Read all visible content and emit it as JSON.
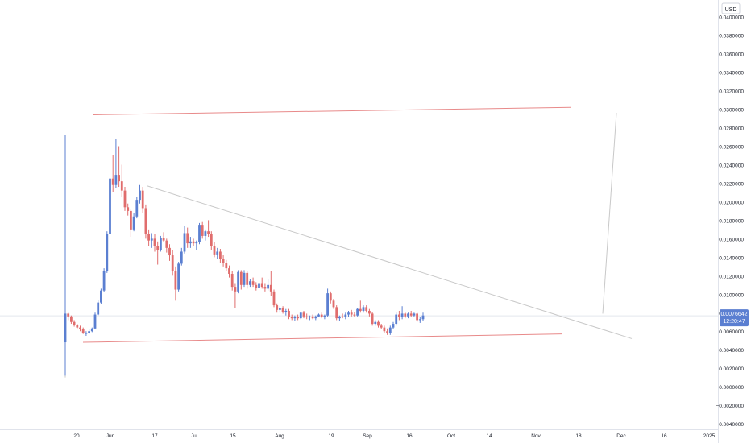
{
  "chart_data": {
    "type": "candlestick",
    "currency": "USD",
    "y_ticks": [
      "0.0400000",
      "0.0380000",
      "0.0360000",
      "0.0340000",
      "0.0320000",
      "0.0300000",
      "0.0280000",
      "0.0260000",
      "0.0240000",
      "0.0220000",
      "0.0200000",
      "0.0180000",
      "0.0160000",
      "0.0140000",
      "0.0120000",
      "0.0100000",
      "0.0080000",
      "0.0060000",
      "0.0040000",
      "0.0020000",
      "−0.0000000",
      "−0.0020000",
      "−0.0040000"
    ],
    "ylim": [
      -0.0046,
      0.0418
    ],
    "x_ticks": [
      "20",
      "Jun",
      "17",
      "Jul",
      "15",
      "Aug",
      "19",
      "Sep",
      "16",
      "Oct",
      "14",
      "Nov",
      "18",
      "Dec",
      "16",
      "2025"
    ],
    "x_tick_pos": [
      95,
      137,
      192,
      241,
      289,
      347,
      411,
      456,
      508,
      560,
      607,
      665,
      718,
      771,
      824,
      880
    ],
    "last_price": {
      "value": "0.0076642",
      "countdown": "12:20:47",
      "color": "#5b7fd1"
    },
    "colors": {
      "up": "#5b7fd1",
      "down": "#e06d6d",
      "resistance": "#e88a8a",
      "support": "#e88a8a",
      "trend": "#c8c8c8"
    },
    "candles_px_per_day": 3.7,
    "candles": [
      [
        0.0048,
        0.0272,
        0.0012,
        0.0079
      ],
      [
        0.0079,
        0.008,
        0.0072,
        0.0076
      ],
      [
        0.0076,
        0.0077,
        0.0068,
        0.007
      ],
      [
        0.007,
        0.0072,
        0.0065,
        0.0067
      ],
      [
        0.0067,
        0.0068,
        0.0063,
        0.0064
      ],
      [
        0.0064,
        0.0066,
        0.006,
        0.0062
      ],
      [
        0.0062,
        0.0064,
        0.0057,
        0.0058
      ],
      [
        0.0058,
        0.006,
        0.0055,
        0.0058
      ],
      [
        0.0058,
        0.0062,
        0.0057,
        0.006
      ],
      [
        0.006,
        0.0064,
        0.0059,
        0.0063
      ],
      [
        0.0063,
        0.008,
        0.0062,
        0.0078
      ],
      [
        0.0078,
        0.0094,
        0.0077,
        0.0091
      ],
      [
        0.0091,
        0.0106,
        0.0089,
        0.0104
      ],
      [
        0.0104,
        0.0128,
        0.0102,
        0.0125
      ],
      [
        0.0125,
        0.0168,
        0.0123,
        0.0165
      ],
      [
        0.0165,
        0.0295,
        0.0163,
        0.0225
      ],
      [
        0.0225,
        0.025,
        0.021,
        0.0218
      ],
      [
        0.0218,
        0.0268,
        0.0215,
        0.0229
      ],
      [
        0.0229,
        0.026,
        0.0216,
        0.0222
      ],
      [
        0.0222,
        0.024,
        0.0205,
        0.0212
      ],
      [
        0.0212,
        0.0216,
        0.019,
        0.0194
      ],
      [
        0.0194,
        0.0198,
        0.0185,
        0.019
      ],
      [
        0.019,
        0.0192,
        0.0162,
        0.017
      ],
      [
        0.017,
        0.0188,
        0.0168,
        0.0184
      ],
      [
        0.0184,
        0.0205,
        0.0182,
        0.0202
      ],
      [
        0.0202,
        0.0218,
        0.0198,
        0.0212
      ],
      [
        0.0212,
        0.0216,
        0.0188,
        0.0193
      ],
      [
        0.0193,
        0.0197,
        0.016,
        0.0165
      ],
      [
        0.0165,
        0.017,
        0.0152,
        0.0158
      ],
      [
        0.0158,
        0.0166,
        0.015,
        0.016
      ],
      [
        0.016,
        0.0165,
        0.0146,
        0.0152
      ],
      [
        0.0152,
        0.0157,
        0.0132,
        0.0148
      ],
      [
        0.0148,
        0.0163,
        0.0146,
        0.0161
      ],
      [
        0.0161,
        0.0167,
        0.0156,
        0.0158
      ],
      [
        0.0158,
        0.016,
        0.0145,
        0.015
      ],
      [
        0.015,
        0.0154,
        0.0136,
        0.0142
      ],
      [
        0.0142,
        0.0148,
        0.012,
        0.0125
      ],
      [
        0.0125,
        0.013,
        0.0093,
        0.0105
      ],
      [
        0.0105,
        0.0135,
        0.0103,
        0.0133
      ],
      [
        0.0133,
        0.015,
        0.0131,
        0.0146
      ],
      [
        0.0146,
        0.0174,
        0.0144,
        0.0166
      ],
      [
        0.0166,
        0.0172,
        0.015,
        0.0155
      ],
      [
        0.0155,
        0.0162,
        0.015,
        0.0157
      ],
      [
        0.0157,
        0.016,
        0.0152,
        0.0155
      ],
      [
        0.0155,
        0.0158,
        0.0148,
        0.0156
      ],
      [
        0.0156,
        0.0177,
        0.0154,
        0.0175
      ],
      [
        0.0175,
        0.0178,
        0.016,
        0.0163
      ],
      [
        0.0163,
        0.017,
        0.0158,
        0.0168
      ],
      [
        0.0168,
        0.018,
        0.0162,
        0.0165
      ],
      [
        0.0165,
        0.0168,
        0.0148,
        0.0152
      ],
      [
        0.0152,
        0.0156,
        0.014,
        0.0143
      ],
      [
        0.0143,
        0.015,
        0.0138,
        0.0146
      ],
      [
        0.0146,
        0.0149,
        0.0134,
        0.0138
      ],
      [
        0.0138,
        0.0142,
        0.013,
        0.0134
      ],
      [
        0.0134,
        0.0137,
        0.0125,
        0.0128
      ],
      [
        0.0128,
        0.0131,
        0.0118,
        0.0122
      ],
      [
        0.0122,
        0.0125,
        0.0104,
        0.0108
      ],
      [
        0.0108,
        0.0112,
        0.0085,
        0.0103
      ],
      [
        0.0103,
        0.0126,
        0.0101,
        0.0124
      ],
      [
        0.0124,
        0.0126,
        0.0105,
        0.011
      ],
      [
        0.011,
        0.0126,
        0.0108,
        0.0123
      ],
      [
        0.0123,
        0.0125,
        0.0106,
        0.011
      ],
      [
        0.011,
        0.0116,
        0.0108,
        0.0114
      ],
      [
        0.0114,
        0.0118,
        0.0108,
        0.011
      ],
      [
        0.011,
        0.0113,
        0.0104,
        0.0107
      ],
      [
        0.0107,
        0.0114,
        0.0105,
        0.0112
      ],
      [
        0.0112,
        0.0118,
        0.0106,
        0.0108
      ],
      [
        0.0108,
        0.0112,
        0.0103,
        0.0106
      ],
      [
        0.0106,
        0.0116,
        0.0104,
        0.011
      ],
      [
        0.011,
        0.0125,
        0.0098,
        0.0103
      ],
      [
        0.0103,
        0.0105,
        0.0086,
        0.0088
      ],
      [
        0.0088,
        0.009,
        0.008,
        0.0083
      ],
      [
        0.0083,
        0.0087,
        0.008,
        0.0085
      ],
      [
        0.0085,
        0.0087,
        0.0079,
        0.0081
      ],
      [
        0.0081,
        0.0084,
        0.0077,
        0.0082
      ],
      [
        0.0082,
        0.0084,
        0.0073,
        0.0075
      ],
      [
        0.0075,
        0.0078,
        0.0072,
        0.0074
      ],
      [
        0.0074,
        0.0077,
        0.0071,
        0.0075
      ],
      [
        0.0075,
        0.0078,
        0.0072,
        0.0074
      ],
      [
        0.0074,
        0.0081,
        0.0073,
        0.008
      ],
      [
        0.008,
        0.0082,
        0.0074,
        0.0076
      ],
      [
        0.0076,
        0.0079,
        0.0073,
        0.0075
      ],
      [
        0.0075,
        0.0077,
        0.0072,
        0.0076
      ],
      [
        0.0076,
        0.0078,
        0.0073,
        0.0074
      ],
      [
        0.0074,
        0.0077,
        0.0072,
        0.0076
      ],
      [
        0.0076,
        0.0079,
        0.0075,
        0.0078
      ],
      [
        0.0078,
        0.008,
        0.0074,
        0.0075
      ],
      [
        0.0075,
        0.0078,
        0.0073,
        0.0077
      ],
      [
        0.0077,
        0.0106,
        0.0075,
        0.0101
      ],
      [
        0.0101,
        0.0103,
        0.009,
        0.0093
      ],
      [
        0.0093,
        0.0095,
        0.0084,
        0.0086
      ],
      [
        0.0086,
        0.0088,
        0.0072,
        0.0074
      ],
      [
        0.0074,
        0.0077,
        0.0071,
        0.0076
      ],
      [
        0.0076,
        0.0079,
        0.0074,
        0.0075
      ],
      [
        0.0075,
        0.008,
        0.0073,
        0.0078
      ],
      [
        0.0078,
        0.0082,
        0.0075,
        0.008
      ],
      [
        0.008,
        0.0083,
        0.0076,
        0.0078
      ],
      [
        0.0078,
        0.0081,
        0.0075,
        0.0077
      ],
      [
        0.0077,
        0.0085,
        0.0076,
        0.0084
      ],
      [
        0.0084,
        0.0093,
        0.008,
        0.0082
      ],
      [
        0.0082,
        0.0088,
        0.008,
        0.0086
      ],
      [
        0.0086,
        0.0088,
        0.008,
        0.0082
      ],
      [
        0.0082,
        0.0084,
        0.0076,
        0.0079
      ],
      [
        0.0079,
        0.0081,
        0.0066,
        0.0068
      ],
      [
        0.0068,
        0.0072,
        0.0066,
        0.007
      ],
      [
        0.007,
        0.0072,
        0.0064,
        0.0066
      ],
      [
        0.0066,
        0.0068,
        0.0062,
        0.0064
      ],
      [
        0.0064,
        0.0066,
        0.0058,
        0.006
      ],
      [
        0.006,
        0.0063,
        0.0056,
        0.0058
      ],
      [
        0.0058,
        0.0066,
        0.0056,
        0.0064
      ],
      [
        0.0064,
        0.007,
        0.0062,
        0.0068
      ],
      [
        0.0068,
        0.008,
        0.0066,
        0.0078
      ],
      [
        0.0078,
        0.0082,
        0.0072,
        0.0075
      ],
      [
        0.0075,
        0.0087,
        0.0073,
        0.0079
      ],
      [
        0.0079,
        0.0081,
        0.0074,
        0.0076
      ],
      [
        0.0076,
        0.008,
        0.0074,
        0.0079
      ],
      [
        0.0079,
        0.0082,
        0.0075,
        0.0077
      ],
      [
        0.0077,
        0.008,
        0.0075,
        0.0079
      ],
      [
        0.0079,
        0.0081,
        0.007,
        0.0072
      ],
      [
        0.0072,
        0.0075,
        0.0069,
        0.0073
      ],
      [
        0.0073,
        0.008,
        0.0071,
        0.0077
      ]
    ],
    "drawings": {
      "resistance": {
        "x1": 116,
        "y1": 0.0294,
        "x2": 708,
        "y2": 0.0302
      },
      "support": {
        "x1": 103,
        "y1": 0.0048,
        "x2": 697,
        "y2": 0.0057
      },
      "trend": {
        "x1": 183,
        "y1": 0.0217,
        "x2": 784,
        "y2": 0.0052
      },
      "vertical": {
        "x": 81,
        "y1": 0.0272,
        "y2": 0.001
      },
      "projection": {
        "x1": 748,
        "y1": 0.0079,
        "x2": 765,
        "y2": 0.0296
      },
      "price_line": 0.0076642
    }
  }
}
